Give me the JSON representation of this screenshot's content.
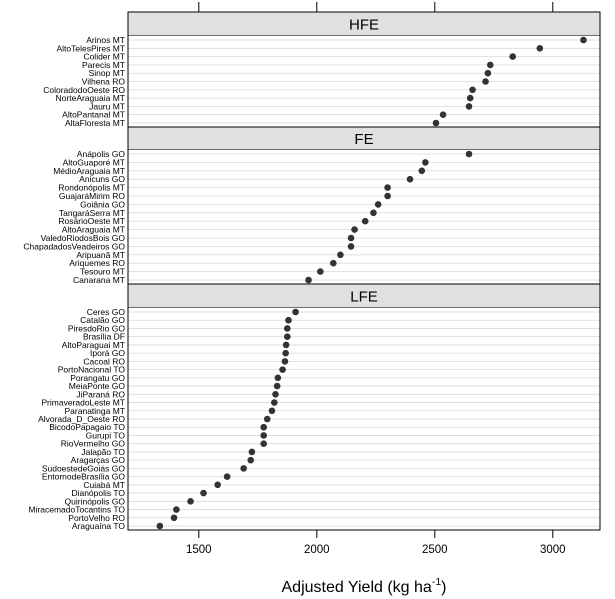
{
  "chart_data": {
    "type": "scatter",
    "xlabel": "Adjusted Yield  (kg ha",
    "xlabel_sup": "-1",
    "xlabel_close": ")",
    "xlim": [
      1200,
      3200
    ],
    "xticks": [
      1500,
      2000,
      2500,
      3000
    ],
    "xtick_labels": [
      "1500",
      "2000",
      "2500",
      "3000"
    ],
    "grid": true,
    "point_color": "#333333",
    "strip_color": "#e0e0e0",
    "panels": [
      {
        "name": "HFE",
        "categories": [
          {
            "label": "Arinos MT",
            "value": 3130
          },
          {
            "label": "AltoTelesPires MT",
            "value": 2945
          },
          {
            "label": "Colider MT",
            "value": 2830
          },
          {
            "label": "Parecis MT",
            "value": 2735
          },
          {
            "label": "Sinop MT",
            "value": 2725
          },
          {
            "label": "Vilhena RO",
            "value": 2715
          },
          {
            "label": "ColoradodoOeste RO",
            "value": 2660
          },
          {
            "label": "NorteAraguaia MT",
            "value": 2650
          },
          {
            "label": "Jauru MT",
            "value": 2645
          },
          {
            "label": "AltoPantanal MT",
            "value": 2535
          },
          {
            "label": "AltaFloresta MT",
            "value": 2505
          }
        ]
      },
      {
        "name": "FE",
        "categories": [
          {
            "label": "Anápolis GO",
            "value": 2645
          },
          {
            "label": "AltoGuaporé MT",
            "value": 2460
          },
          {
            "label": "MédioAraguaia MT",
            "value": 2445
          },
          {
            "label": "Anicuns GO",
            "value": 2395
          },
          {
            "label": "Rondonópolis MT",
            "value": 2300
          },
          {
            "label": "GuajaráMirim RO",
            "value": 2300
          },
          {
            "label": "Goiânia GO",
            "value": 2260
          },
          {
            "label": "TangaráSerra MT",
            "value": 2240
          },
          {
            "label": "RosárioOeste MT",
            "value": 2205
          },
          {
            "label": "AltoAraguaia MT",
            "value": 2160
          },
          {
            "label": "ValedoRiodosBois GO",
            "value": 2145
          },
          {
            "label": "ChapadadosVeadeiros GO",
            "value": 2145
          },
          {
            "label": "Aripuanã MT",
            "value": 2100
          },
          {
            "label": "Ariquemes RO",
            "value": 2070
          },
          {
            "label": "Tesouro MT",
            "value": 2015
          },
          {
            "label": "Canarana MT",
            "value": 1965
          }
        ]
      },
      {
        "name": "LFE",
        "categories": [
          {
            "label": "Ceres GO",
            "value": 1910
          },
          {
            "label": "Catalão GO",
            "value": 1880
          },
          {
            "label": "PiresdoRio GO",
            "value": 1875
          },
          {
            "label": "Brasília DF",
            "value": 1875
          },
          {
            "label": "AltoParaguai MT",
            "value": 1870
          },
          {
            "label": "Iporá GO",
            "value": 1868
          },
          {
            "label": "Cacoal RO",
            "value": 1865
          },
          {
            "label": "PortoNacional TO",
            "value": 1855
          },
          {
            "label": "Porangatu GO",
            "value": 1835
          },
          {
            "label": "MeiaPonte GO",
            "value": 1832
          },
          {
            "label": "JiParaná RO",
            "value": 1825
          },
          {
            "label": "PrimaveradoLeste MT",
            "value": 1820
          },
          {
            "label": "Paranatinga MT",
            "value": 1810
          },
          {
            "label": "Alvorada_D_Oeste RO",
            "value": 1790
          },
          {
            "label": "BicodoPapagaio TO",
            "value": 1775
          },
          {
            "label": "Gurupi TO",
            "value": 1775
          },
          {
            "label": "RioVermelho GO",
            "value": 1775
          },
          {
            "label": "Jalapão TO",
            "value": 1725
          },
          {
            "label": "Aragarças GO",
            "value": 1720
          },
          {
            "label": "SudoestedeGoiás GO",
            "value": 1690
          },
          {
            "label": "EntornodeBrasília GO",
            "value": 1620
          },
          {
            "label": "Cuiabá MT",
            "value": 1580
          },
          {
            "label": "Dianópolis TO",
            "value": 1520
          },
          {
            "label": "Quirinópolis GO",
            "value": 1465
          },
          {
            "label": "MiracemadoTocantins TO",
            "value": 1405
          },
          {
            "label": "PortoVelho RO",
            "value": 1395
          },
          {
            "label": "Araguaína TO",
            "value": 1335
          }
        ]
      }
    ]
  }
}
